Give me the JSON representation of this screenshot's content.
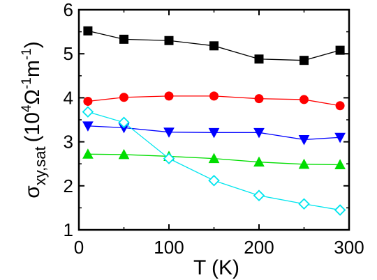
{
  "chart_data": {
    "type": "scatter",
    "xlabel": "T (K)",
    "ylabel": {
      "symbol": "σ",
      "subscript": "xy,sat",
      "unit_open": "(10",
      "unit_exp1": "4",
      "unit_omega": "Ω",
      "unit_exp2": "-1",
      "unit_m": "m",
      "unit_exp3": "-1",
      "unit_close": ")"
    },
    "xlim": [
      0,
      300
    ],
    "ylim": [
      1,
      6
    ],
    "xticks": [
      0,
      100,
      200,
      300
    ],
    "yticks": [
      1,
      2,
      3,
      4,
      5,
      6
    ],
    "grid": false,
    "legend": "none",
    "series": [
      {
        "marker": "square",
        "color": "#000000",
        "filled": true,
        "x": [
          10,
          50,
          100,
          150,
          200,
          250,
          290
        ],
        "y": [
          5.52,
          5.33,
          5.3,
          5.18,
          4.88,
          4.85,
          5.08
        ]
      },
      {
        "marker": "circle",
        "color": "#ff0000",
        "filled": true,
        "x": [
          10,
          50,
          100,
          150,
          200,
          250,
          290
        ],
        "y": [
          3.92,
          4.01,
          4.04,
          4.04,
          3.98,
          3.96,
          3.82
        ]
      },
      {
        "marker": "triangle-down",
        "color": "#0000ff",
        "filled": true,
        "x": [
          10,
          50,
          100,
          150,
          200,
          250,
          290
        ],
        "y": [
          3.36,
          3.32,
          3.22,
          3.21,
          3.21,
          3.05,
          3.1
        ]
      },
      {
        "marker": "triangle-up",
        "color": "#00dd00",
        "filled": true,
        "x": [
          10,
          50,
          100,
          150,
          200,
          250,
          290
        ],
        "y": [
          2.72,
          2.71,
          2.67,
          2.62,
          2.54,
          2.49,
          2.48
        ]
      },
      {
        "marker": "diamond",
        "color": "#00e5ee",
        "filled": false,
        "x": [
          10,
          50,
          100,
          150,
          200,
          250,
          290
        ],
        "y": [
          3.68,
          3.44,
          2.62,
          2.12,
          1.78,
          1.59,
          1.45
        ]
      }
    ]
  }
}
